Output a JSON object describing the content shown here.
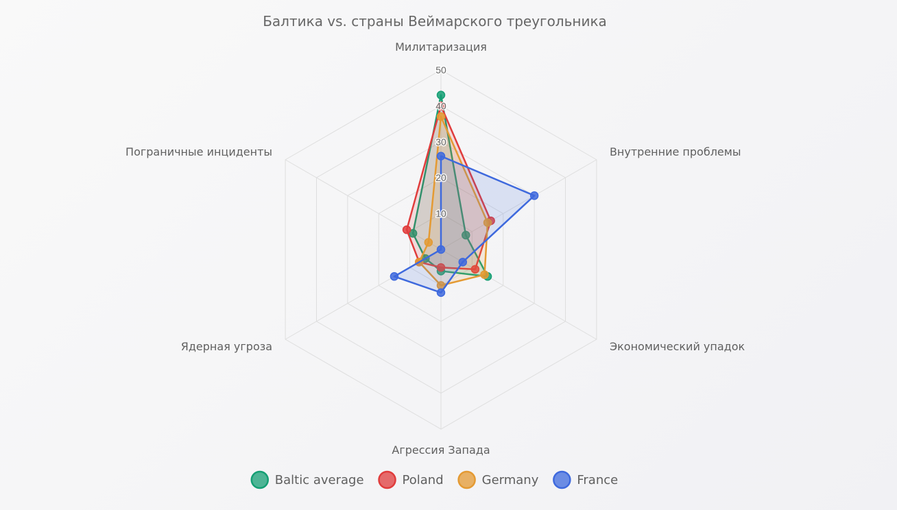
{
  "chart_data": {
    "type": "radar",
    "title": "Балтика vs. страны Веймарского треугольника",
    "axes": [
      "Милитаризация",
      "Внутренние проблемы",
      "Экономический упадок",
      "Агрессия Запада",
      "Ядерная угроза",
      "Пограничные инциденты"
    ],
    "r_range": [
      0,
      50
    ],
    "ticks": [
      10,
      20,
      30,
      40,
      50
    ],
    "grid": true,
    "legend_position": "bottom",
    "series": [
      {
        "name": "Baltic average",
        "color": "#159f74",
        "values": [
          43,
          8,
          15,
          6,
          5,
          9
        ]
      },
      {
        "name": "Poland",
        "color": "#e03c3c",
        "values": [
          40,
          16,
          11,
          5,
          7,
          11
        ]
      },
      {
        "name": "Germany",
        "color": "#e49a33",
        "values": [
          37,
          15,
          14,
          10,
          7,
          4
        ]
      },
      {
        "name": "France",
        "color": "#3e69dd",
        "values": [
          26,
          30,
          7,
          12,
          15,
          0
        ]
      }
    ]
  }
}
